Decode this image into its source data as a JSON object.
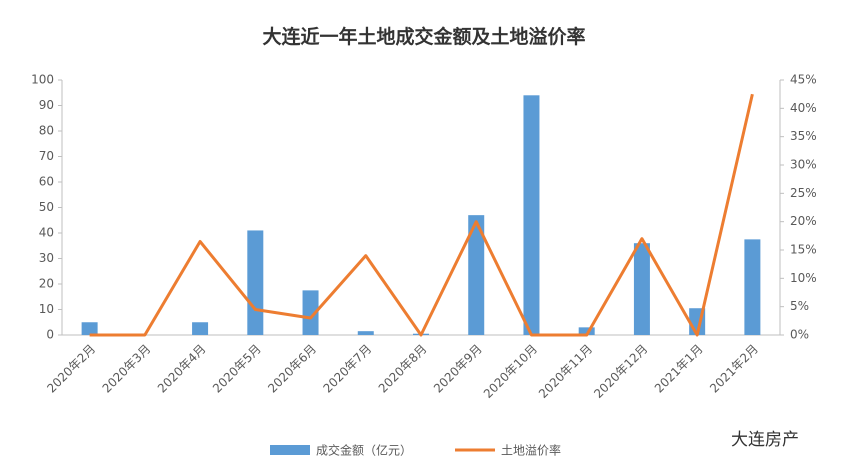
{
  "chart_data": {
    "type": "combo",
    "title": "大连近一年土地成交金额及土地溢价率",
    "categories": [
      "2020年2月",
      "2020年3月",
      "2020年4月",
      "2020年5月",
      "2020年6月",
      "2020年7月",
      "2020年8月",
      "2020年9月",
      "2020年10月",
      "2020年11月",
      "2020年12月",
      "2021年1月",
      "2021年2月"
    ],
    "series": [
      {
        "name": "成交金额（亿元）",
        "type": "bar",
        "color": "#5b9bd5",
        "values": [
          5,
          0,
          5,
          41,
          17.5,
          1.5,
          0.5,
          47,
          94,
          3,
          36,
          10.5,
          37.5
        ]
      },
      {
        "name": "土地溢价率",
        "type": "line",
        "axis": "y2",
        "color": "#ed7d31",
        "values": [
          0,
          0,
          16.5,
          4.5,
          3,
          14,
          0,
          20,
          0,
          0,
          17,
          0,
          42.5
        ]
      }
    ],
    "ylim": [
      0,
      100
    ],
    "yticks": [
      0,
      10,
      20,
      30,
      40,
      50,
      60,
      70,
      80,
      90,
      100
    ],
    "y2lim": [
      0,
      45
    ],
    "y2ticks": [
      {
        "value": 0,
        "label": "0%"
      },
      {
        "value": 5,
        "label": "5%"
      },
      {
        "value": 10,
        "label": "10%"
      },
      {
        "value": 15,
        "label": "15%"
      },
      {
        "value": 20,
        "label": "20%"
      },
      {
        "value": 25,
        "label": "25%"
      },
      {
        "value": 30,
        "label": "30%"
      },
      {
        "value": 35,
        "label": "35%"
      },
      {
        "value": 40,
        "label": "40%"
      },
      {
        "value": 45,
        "label": "45%"
      }
    ],
    "watermark": "大连房产"
  }
}
